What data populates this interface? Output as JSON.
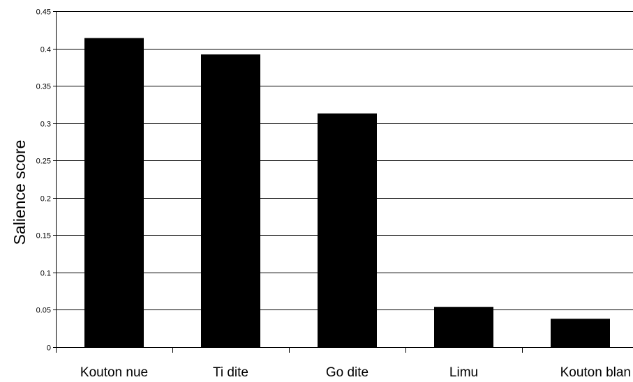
{
  "chart_data": {
    "type": "bar",
    "categories": [
      "Kouton nue",
      "Ti dite",
      "Go dite",
      "Limu",
      "Kouton blan"
    ],
    "values": [
      0.414,
      0.392,
      0.313,
      0.054,
      0.038
    ],
    "ylabel": "Salience score",
    "ylim": [
      0,
      0.45
    ],
    "yticks": [
      "0",
      "0.05",
      "0.1",
      "0.15",
      "0.2",
      "0.25",
      "0.3",
      "0.35",
      "0.4",
      "0.45"
    ],
    "grid": true,
    "bar_color": "#000000"
  }
}
